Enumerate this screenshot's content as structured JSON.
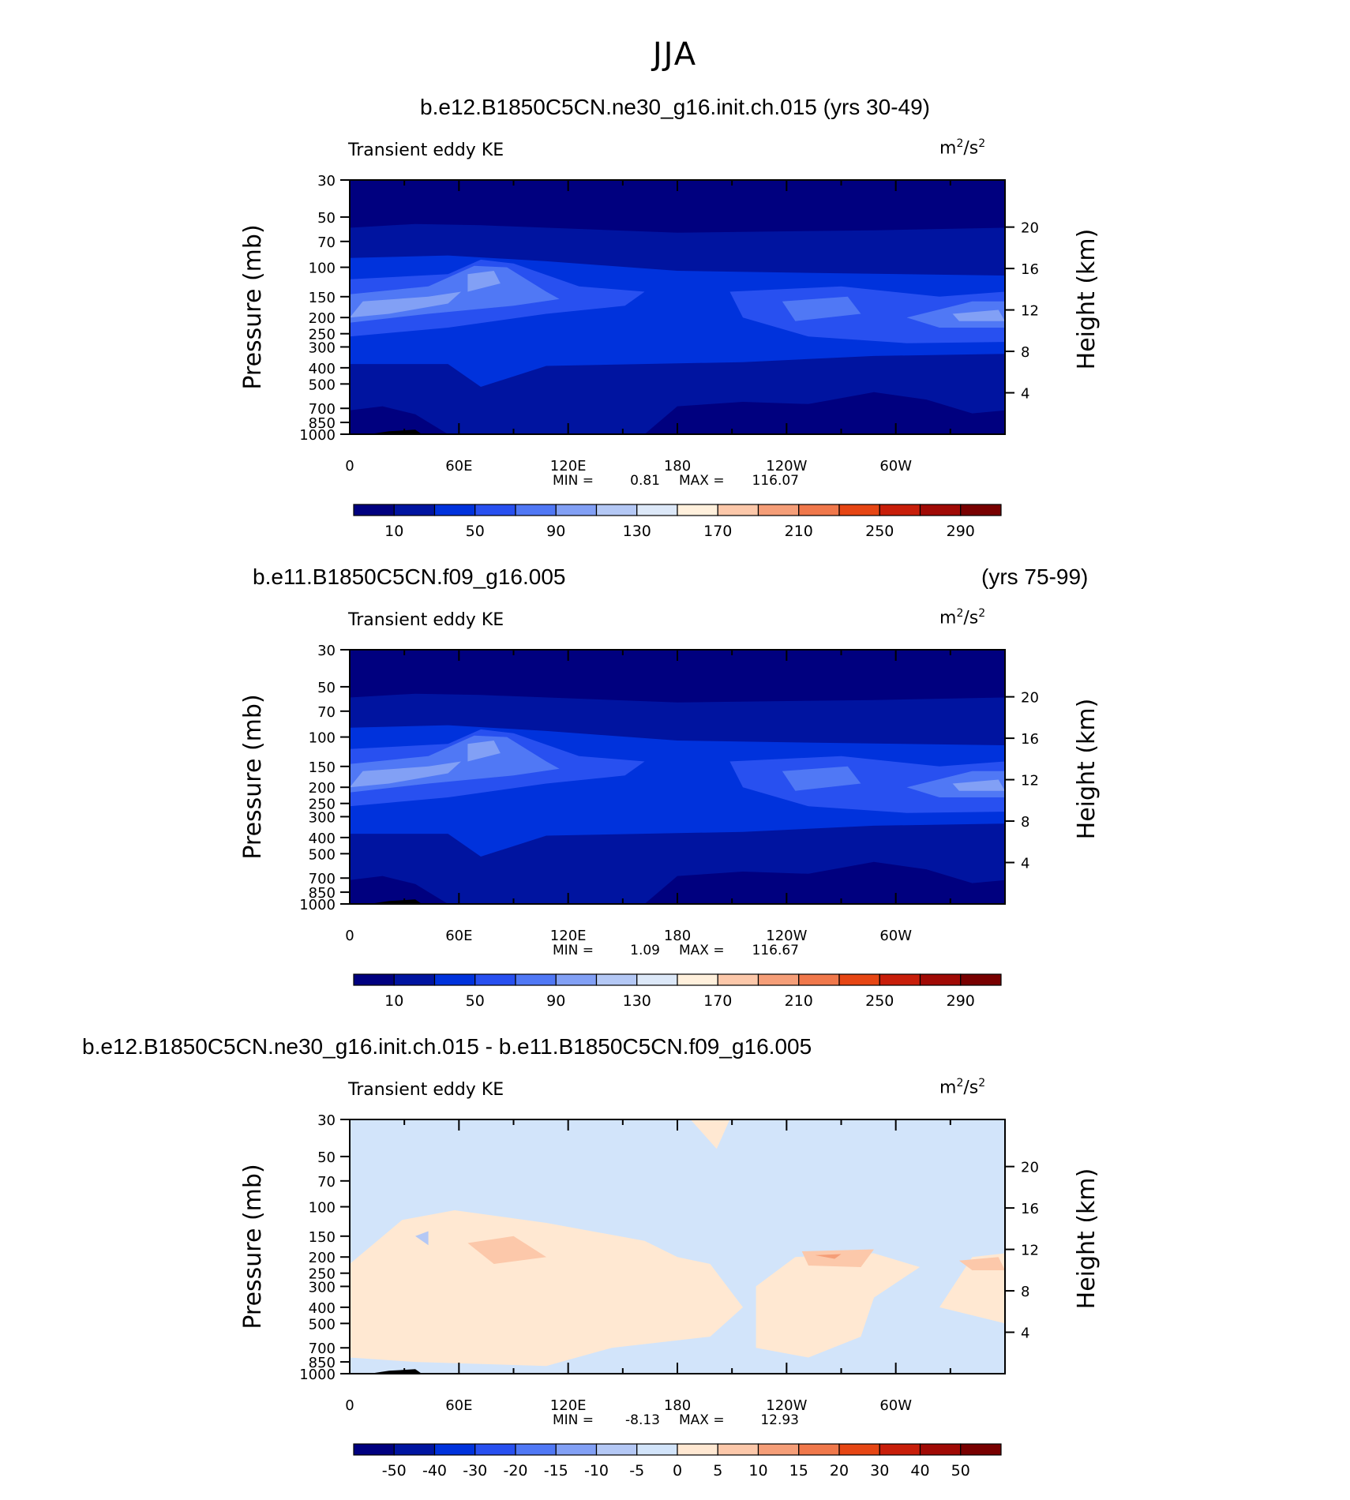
{
  "figure": {
    "title": "JJA"
  },
  "panels": [
    {
      "id": "panel-1",
      "title_left": "b.e12.B1850C5CN.ne30_g16.init.ch.015 (yrs 30-49)",
      "title_right": "",
      "variable": "Transient eddy KE",
      "units_base": "m",
      "units_exp1": "2",
      "units_mid": "/s",
      "units_exp2": "2",
      "min_label": "MIN =",
      "min_value": "0.81",
      "max_label": "MAX =",
      "max_value": "116.07",
      "colorbar_labels": [
        "10",
        "50",
        "90",
        "130",
        "170",
        "210",
        "250",
        "290"
      ]
    },
    {
      "id": "panel-2",
      "title_left": "b.e11.B1850C5CN.f09_g16.005",
      "title_right": "(yrs 75-99)",
      "variable": "Transient eddy KE",
      "units_base": "m",
      "units_exp1": "2",
      "units_mid": "/s",
      "units_exp2": "2",
      "min_label": "MIN =",
      "min_value": "1.09",
      "max_label": "MAX =",
      "max_value": "116.67",
      "colorbar_labels": [
        "10",
        "50",
        "90",
        "130",
        "170",
        "210",
        "250",
        "290"
      ]
    },
    {
      "id": "panel-3",
      "title_left": "b.e12.B1850C5CN.ne30_g16.init.ch.015 - b.e11.B1850C5CN.f09_g16.005",
      "title_right": "",
      "variable": "Transient eddy KE",
      "units_base": "m",
      "units_exp1": "2",
      "units_mid": "/s",
      "units_exp2": "2",
      "min_label": "MIN =",
      "min_value": "-8.13",
      "max_label": "MAX =",
      "max_value": "12.93",
      "colorbar_labels": [
        "-50",
        "-40",
        "-30",
        "-20",
        "-15",
        "-10",
        "-5",
        "0",
        "5",
        "10",
        "15",
        "20",
        "30",
        "40",
        "50"
      ]
    }
  ],
  "axes": {
    "x_ticks": [
      "0",
      "60E",
      "120E",
      "180",
      "120W",
      "60W"
    ],
    "y_left_label": "Pressure (mb)",
    "y_left_ticks": [
      "30",
      "50",
      "70",
      "100",
      "150",
      "200",
      "250",
      "300",
      "400",
      "500",
      "700",
      "850",
      "1000"
    ],
    "y_right_label": "Height (km)",
    "y_right_ticks": [
      "20",
      "16",
      "12",
      "8",
      "4"
    ]
  },
  "colors": {
    "full_scale": [
      "#00007f",
      "#0014a0",
      "#0032dc",
      "#2850f0",
      "#5078f5",
      "#82a0f5",
      "#b4c8f5",
      "#dce8f8",
      "#fff0dc",
      "#fcc8aa",
      "#f59e78",
      "#f0784b",
      "#e64614",
      "#c81e0a",
      "#a00a05",
      "#780000"
    ],
    "diff_scale": [
      "#00007f",
      "#0014a0",
      "#0032dc",
      "#2850f0",
      "#5078f5",
      "#82a0f5",
      "#b4c8f5",
      "#d2e4fa",
      "#ffe8d2",
      "#fcc8aa",
      "#f59e78",
      "#f0784b",
      "#e64614",
      "#c81e0a",
      "#a00a05",
      "#780000"
    ]
  },
  "chart_data": [
    {
      "type": "heatmap",
      "title": "b.e12.B1850C5CN.ne30_g16.init.ch.015 (yrs 30-49)",
      "variable": "Transient eddy KE",
      "units": "m2/s2",
      "xlabel": "",
      "ylabel": "Pressure (mb)",
      "y2label": "Height (km)",
      "x": [
        "0",
        "60E",
        "120E",
        "180",
        "120W",
        "60W"
      ],
      "y": [
        30,
        50,
        70,
        100,
        150,
        200,
        250,
        300,
        400,
        500,
        700,
        850,
        1000
      ],
      "levels": [
        10,
        30,
        50,
        70,
        90,
        110,
        130,
        150,
        170,
        190,
        210,
        230,
        250,
        270,
        290
      ],
      "min": 0.81,
      "max": 116.07
    },
    {
      "type": "heatmap",
      "title": "b.e11.B1850C5CN.f09_g16.005 (yrs 75-99)",
      "variable": "Transient eddy KE",
      "units": "m2/s2",
      "xlabel": "",
      "ylabel": "Pressure (mb)",
      "y2label": "Height (km)",
      "x": [
        "0",
        "60E",
        "120E",
        "180",
        "120W",
        "60W"
      ],
      "y": [
        30,
        50,
        70,
        100,
        150,
        200,
        250,
        300,
        400,
        500,
        700,
        850,
        1000
      ],
      "levels": [
        10,
        30,
        50,
        70,
        90,
        110,
        130,
        150,
        170,
        190,
        210,
        230,
        250,
        270,
        290
      ],
      "min": 1.09,
      "max": 116.67
    },
    {
      "type": "heatmap",
      "title": "b.e12.B1850C5CN.ne30_g16.init.ch.015 - b.e11.B1850C5CN.f09_g16.005",
      "variable": "Transient eddy KE",
      "units": "m2/s2",
      "xlabel": "",
      "ylabel": "Pressure (mb)",
      "y2label": "Height (km)",
      "x": [
        "0",
        "60E",
        "120E",
        "180",
        "120W",
        "60W"
      ],
      "y": [
        30,
        50,
        70,
        100,
        150,
        200,
        250,
        300,
        400,
        500,
        700,
        850,
        1000
      ],
      "levels": [
        -50,
        -40,
        -30,
        -20,
        -15,
        -10,
        -5,
        0,
        5,
        10,
        15,
        20,
        30,
        40,
        50
      ],
      "min": -8.13,
      "max": 12.93
    }
  ]
}
